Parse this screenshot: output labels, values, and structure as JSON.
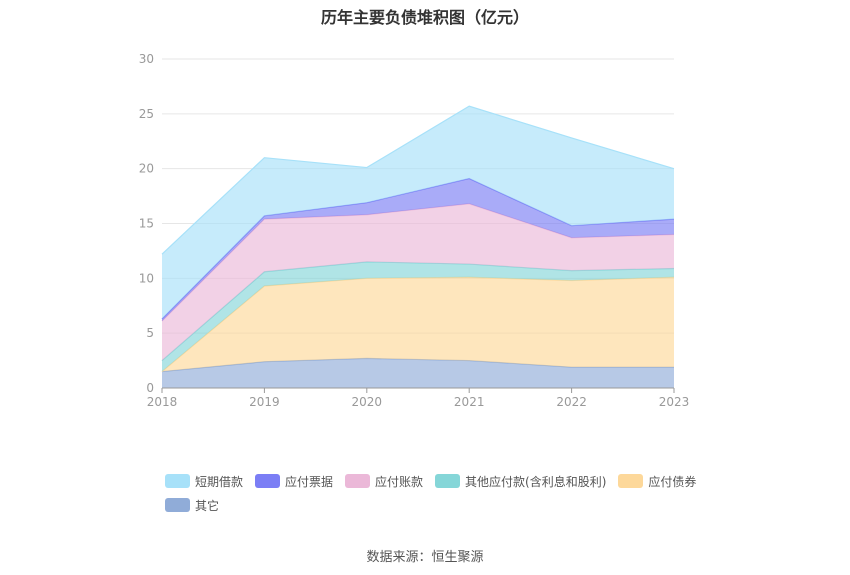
{
  "chart_data": {
    "type": "area",
    "stacked": true,
    "title": "历年主要负债堆积图（亿元）",
    "x": [
      "2018",
      "2019",
      "2020",
      "2021",
      "2022",
      "2023"
    ],
    "ylim": [
      0,
      30
    ],
    "yticks": [
      0,
      5,
      10,
      15,
      20,
      25,
      30
    ],
    "grid": true,
    "legend_position": "bottom",
    "series": [
      {
        "name": "其它",
        "color": "#90acd8",
        "values": [
          1.5,
          2.4,
          2.7,
          2.5,
          1.9,
          1.9
        ]
      },
      {
        "name": "应付债券",
        "color": "#fdd89a",
        "values": [
          0.0,
          6.9,
          7.3,
          7.6,
          7.9,
          8.2
        ]
      },
      {
        "name": "其他应付款(含利息和股利)",
        "color": "#85d6d8",
        "values": [
          1.0,
          1.3,
          1.5,
          1.2,
          0.9,
          0.8
        ]
      },
      {
        "name": "应付账款",
        "color": "#ebb8d8",
        "values": [
          3.6,
          4.8,
          4.3,
          5.5,
          3.0,
          3.1
        ]
      },
      {
        "name": "应付票据",
        "color": "#7b7ef5",
        "values": [
          0.2,
          0.3,
          1.1,
          2.3,
          1.1,
          1.4
        ]
      },
      {
        "name": "短期借款",
        "color": "#a7e1f9",
        "values": [
          5.9,
          5.3,
          3.2,
          6.6,
          8.0,
          4.6
        ]
      }
    ],
    "source": "数据来源：恒生聚源"
  }
}
